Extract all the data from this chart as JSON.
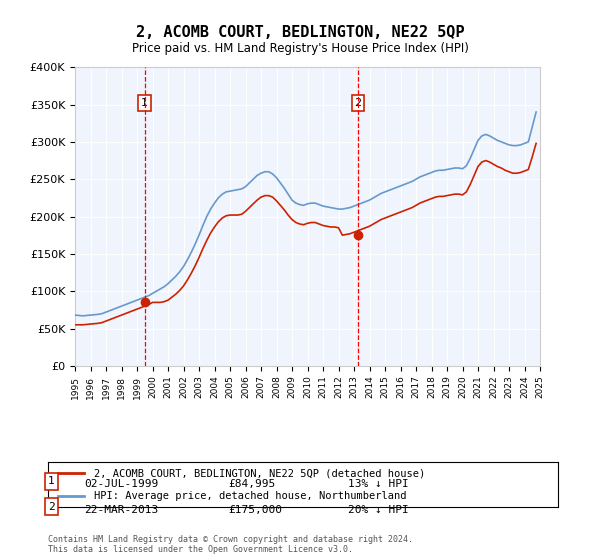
{
  "title": "2, ACOMB COURT, BEDLINGTON, NE22 5QP",
  "subtitle": "Price paid vs. HM Land Registry's House Price Index (HPI)",
  "ylabel": "",
  "bg_color": "#e8eef8",
  "plot_bg": "#f0f4fc",
  "red_line_label": "2, ACOMB COURT, BEDLINGTON, NE22 5QP (detached house)",
  "blue_line_label": "HPI: Average price, detached house, Northumberland",
  "sale1_date": "02-JUL-1999",
  "sale1_price": 84995,
  "sale1_label": "13% ↓ HPI",
  "sale2_date": "22-MAR-2013",
  "sale2_price": 175000,
  "sale2_label": "20% ↓ HPI",
  "footer": "Contains HM Land Registry data © Crown copyright and database right 2024.\nThis data is licensed under the Open Government Licence v3.0.",
  "hpi_years": [
    1995.0,
    1995.25,
    1995.5,
    1995.75,
    1996.0,
    1996.25,
    1996.5,
    1996.75,
    1997.0,
    1997.25,
    1997.5,
    1997.75,
    1998.0,
    1998.25,
    1998.5,
    1998.75,
    1999.0,
    1999.25,
    1999.5,
    1999.75,
    2000.0,
    2000.25,
    2000.5,
    2000.75,
    2001.0,
    2001.25,
    2001.5,
    2001.75,
    2002.0,
    2002.25,
    2002.5,
    2002.75,
    2003.0,
    2003.25,
    2003.5,
    2003.75,
    2004.0,
    2004.25,
    2004.5,
    2004.75,
    2005.0,
    2005.25,
    2005.5,
    2005.75,
    2006.0,
    2006.25,
    2006.5,
    2006.75,
    2007.0,
    2007.25,
    2007.5,
    2007.75,
    2008.0,
    2008.25,
    2008.5,
    2008.75,
    2009.0,
    2009.25,
    2009.5,
    2009.75,
    2010.0,
    2010.25,
    2010.5,
    2010.75,
    2011.0,
    2011.25,
    2011.5,
    2011.75,
    2012.0,
    2012.25,
    2012.5,
    2012.75,
    2013.0,
    2013.25,
    2013.5,
    2013.75,
    2014.0,
    2014.25,
    2014.5,
    2014.75,
    2015.0,
    2015.25,
    2015.5,
    2015.75,
    2016.0,
    2016.25,
    2016.5,
    2016.75,
    2017.0,
    2017.25,
    2017.5,
    2017.75,
    2018.0,
    2018.25,
    2018.5,
    2018.75,
    2019.0,
    2019.25,
    2019.5,
    2019.75,
    2020.0,
    2020.25,
    2020.5,
    2020.75,
    2021.0,
    2021.25,
    2021.5,
    2021.75,
    2022.0,
    2022.25,
    2022.5,
    2022.75,
    2023.0,
    2023.25,
    2023.5,
    2023.75,
    2024.0,
    2024.25,
    2024.5,
    2024.75
  ],
  "hpi_values": [
    68000,
    67500,
    67000,
    67500,
    68000,
    68500,
    69000,
    70000,
    72000,
    74000,
    76000,
    78000,
    80000,
    82000,
    84000,
    86000,
    88000,
    90000,
    92000,
    94000,
    97000,
    100000,
    103000,
    106000,
    110000,
    115000,
    120000,
    126000,
    133000,
    142000,
    152000,
    163000,
    175000,
    188000,
    200000,
    210000,
    218000,
    225000,
    230000,
    233000,
    234000,
    235000,
    236000,
    237000,
    240000,
    245000,
    250000,
    255000,
    258000,
    260000,
    260000,
    257000,
    252000,
    245000,
    238000,
    230000,
    222000,
    218000,
    216000,
    215000,
    217000,
    218000,
    218000,
    216000,
    214000,
    213000,
    212000,
    211000,
    210000,
    210000,
    211000,
    212000,
    214000,
    216000,
    218000,
    220000,
    222000,
    225000,
    228000,
    231000,
    233000,
    235000,
    237000,
    239000,
    241000,
    243000,
    245000,
    247000,
    250000,
    253000,
    255000,
    257000,
    259000,
    261000,
    262000,
    262000,
    263000,
    264000,
    265000,
    265000,
    264000,
    268000,
    278000,
    290000,
    302000,
    308000,
    310000,
    308000,
    305000,
    302000,
    300000,
    298000,
    296000,
    295000,
    295000,
    296000,
    298000,
    300000,
    320000,
    340000
  ],
  "red_years": [
    1995.0,
    1995.25,
    1995.5,
    1995.75,
    1996.0,
    1996.25,
    1996.5,
    1996.75,
    1997.0,
    1997.25,
    1997.5,
    1997.75,
    1998.0,
    1998.25,
    1998.5,
    1998.75,
    1999.0,
    1999.25,
    1999.5,
    1999.75,
    2000.0,
    2000.25,
    2000.5,
    2000.75,
    2001.0,
    2001.25,
    2001.5,
    2001.75,
    2002.0,
    2002.25,
    2002.5,
    2002.75,
    2003.0,
    2003.25,
    2003.5,
    2003.75,
    2004.0,
    2004.25,
    2004.5,
    2004.75,
    2005.0,
    2005.25,
    2005.5,
    2005.75,
    2006.0,
    2006.25,
    2006.5,
    2006.75,
    2007.0,
    2007.25,
    2007.5,
    2007.75,
    2008.0,
    2008.25,
    2008.5,
    2008.75,
    2009.0,
    2009.25,
    2009.5,
    2009.75,
    2010.0,
    2010.25,
    2010.5,
    2010.75,
    2011.0,
    2011.25,
    2011.5,
    2011.75,
    2012.0,
    2012.25,
    2012.5,
    2012.75,
    2013.0,
    2013.25,
    2013.5,
    2013.75,
    2014.0,
    2014.25,
    2014.5,
    2014.75,
    2015.0,
    2015.25,
    2015.5,
    2015.75,
    2016.0,
    2016.25,
    2016.5,
    2016.75,
    2017.0,
    2017.25,
    2017.5,
    2017.75,
    2018.0,
    2018.25,
    2018.5,
    2018.75,
    2019.0,
    2019.25,
    2019.5,
    2019.75,
    2020.0,
    2020.25,
    2020.5,
    2020.75,
    2021.0,
    2021.25,
    2021.5,
    2021.75,
    2022.0,
    2022.25,
    2022.5,
    2022.75,
    2023.0,
    2023.25,
    2023.5,
    2023.75,
    2024.0,
    2024.25,
    2024.5,
    2024.75
  ],
  "red_values": [
    55000,
    55000,
    55000,
    55500,
    56000,
    56500,
    57000,
    58000,
    60000,
    62000,
    64000,
    66000,
    68000,
    70000,
    72000,
    74000,
    76000,
    78000,
    80000,
    82000,
    84995,
    84995,
    85000,
    86000,
    88000,
    92000,
    96000,
    101000,
    107000,
    115000,
    124000,
    134000,
    145000,
    157000,
    168000,
    178000,
    186000,
    193000,
    198000,
    201000,
    202000,
    202000,
    202000,
    203000,
    207000,
    212000,
    217000,
    222000,
    226000,
    228000,
    228000,
    226000,
    221000,
    215000,
    209000,
    202000,
    196000,
    192000,
    190000,
    189000,
    191000,
    192000,
    192000,
    190000,
    188000,
    187000,
    186000,
    186000,
    185000,
    175000,
    176000,
    177000,
    179000,
    181000,
    183000,
    185000,
    187000,
    190000,
    193000,
    196000,
    198000,
    200000,
    202000,
    204000,
    206000,
    208000,
    210000,
    212000,
    215000,
    218000,
    220000,
    222000,
    224000,
    226000,
    227000,
    227000,
    228000,
    229000,
    230000,
    230000,
    229000,
    233000,
    243000,
    255000,
    267000,
    273000,
    275000,
    273000,
    270000,
    267000,
    265000,
    262000,
    260000,
    258000,
    258000,
    259000,
    261000,
    263000,
    280000,
    298000
  ],
  "sale1_x": 1999.5,
  "sale2_x": 2013.25,
  "ylim": [
    0,
    400000
  ],
  "xlim_start": 1995.0,
  "xlim_end": 2025.0
}
